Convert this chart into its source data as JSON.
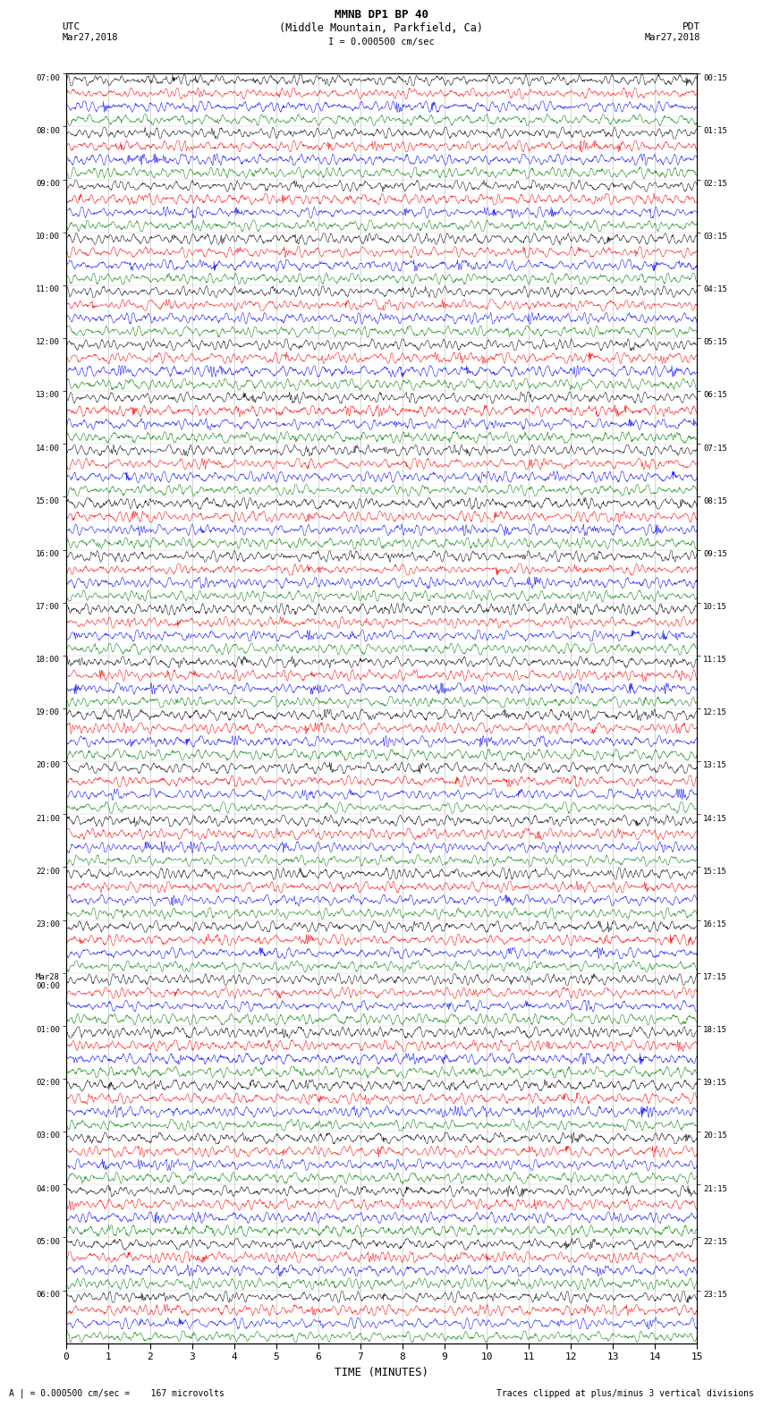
{
  "title_line1": "MMNB DP1 BP 40",
  "title_line2": "(Middle Mountain, Parkfield, Ca)",
  "scale_text": "I = 0.000500 cm/sec",
  "footer_left": "A | = 0.000500 cm/sec =    167 microvolts",
  "footer_right": "Traces clipped at plus/minus 3 vertical divisions",
  "xlabel": "TIME (MINUTES)",
  "x_ticks": [
    0,
    1,
    2,
    3,
    4,
    5,
    6,
    7,
    8,
    9,
    10,
    11,
    12,
    13,
    14,
    15
  ],
  "left_times": [
    "07:00",
    "08:00",
    "09:00",
    "10:00",
    "11:00",
    "12:00",
    "13:00",
    "14:00",
    "15:00",
    "16:00",
    "17:00",
    "18:00",
    "19:00",
    "20:00",
    "21:00",
    "22:00",
    "23:00",
    "Mar28\n00:00",
    "01:00",
    "02:00",
    "03:00",
    "04:00",
    "05:00",
    "06:00"
  ],
  "right_times": [
    "00:15",
    "01:15",
    "02:15",
    "03:15",
    "04:15",
    "05:15",
    "06:15",
    "07:15",
    "08:15",
    "09:15",
    "10:15",
    "11:15",
    "12:15",
    "13:15",
    "14:15",
    "15:15",
    "16:15",
    "17:15",
    "18:15",
    "19:15",
    "20:15",
    "21:15",
    "22:15",
    "23:15"
  ],
  "num_rows": 24,
  "traces_per_row": 4,
  "colors": [
    "black",
    "red",
    "blue",
    "green"
  ],
  "bg_color": "white",
  "fig_width": 8.5,
  "fig_height": 16.13,
  "dpi": 100,
  "num_points": 1800
}
